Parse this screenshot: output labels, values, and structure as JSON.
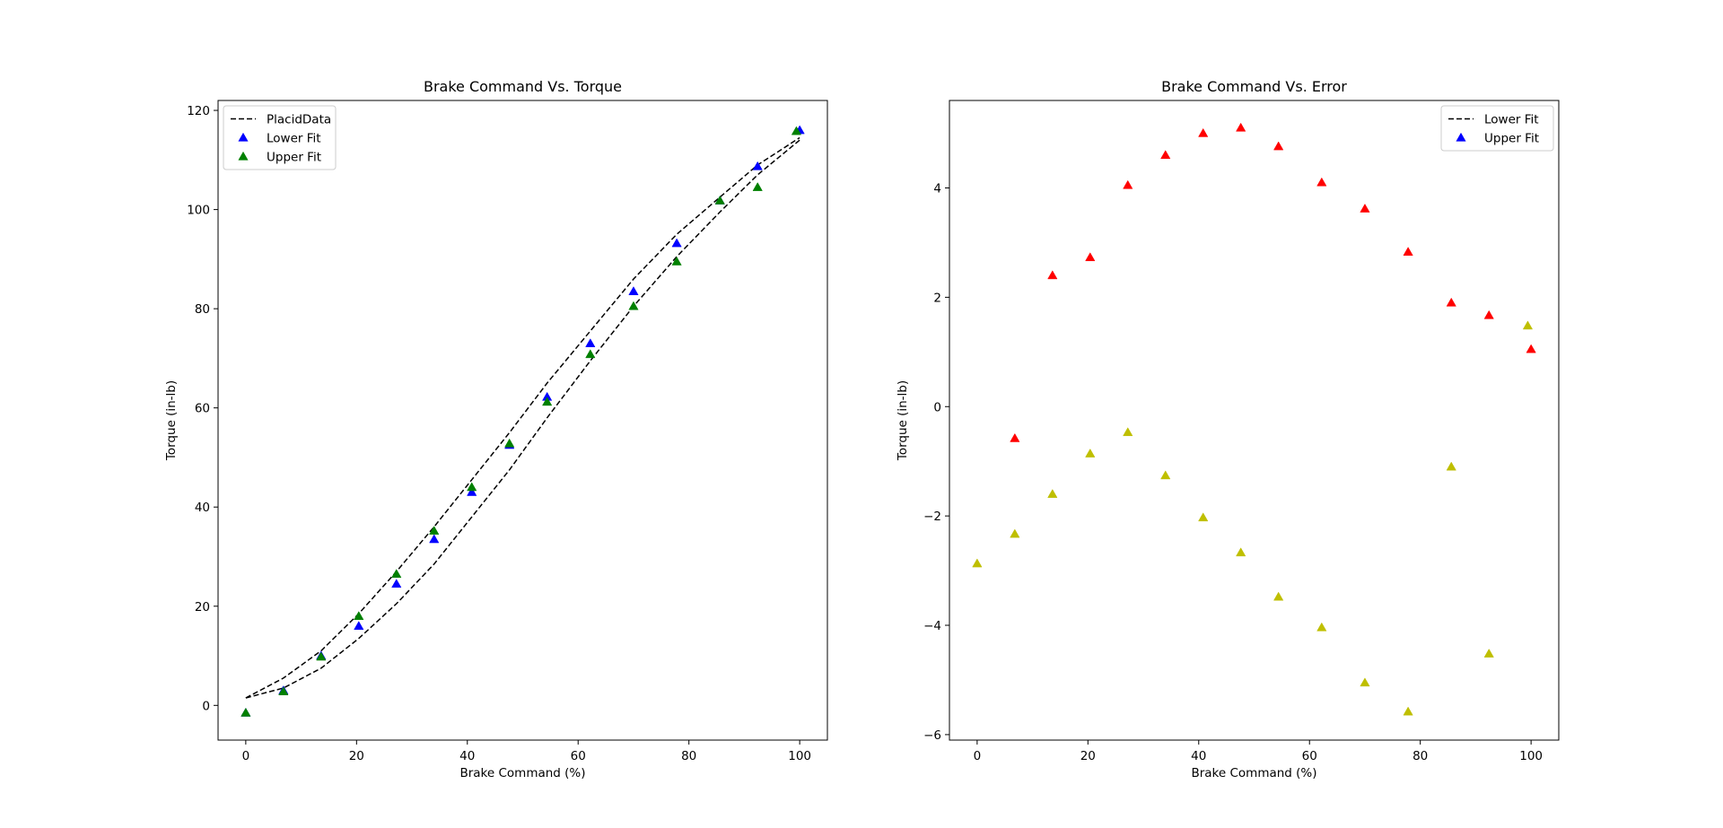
{
  "chart_data": [
    {
      "type": "scatter",
      "title": "Brake Command Vs. Torque",
      "xlabel": "Brake Command (%)",
      "ylabel": "Torque (in-lb)",
      "xlim": [
        -5,
        105
      ],
      "ylim": [
        -7,
        122
      ],
      "xticks": [
        0,
        20,
        40,
        60,
        80,
        100
      ],
      "yticks": [
        0,
        20,
        40,
        60,
        80,
        100,
        120
      ],
      "legend_position": "upper-left",
      "legend": [
        {
          "label": "PlacidData",
          "style": "dashed-line",
          "color": "#000000"
        },
        {
          "label": "Lower Fit",
          "style": "triangle",
          "color": "#0000ff"
        },
        {
          "label": "Upper Fit",
          "style": "triangle",
          "color": "#008000"
        }
      ],
      "lines": [
        {
          "color": "#000000",
          "dash": true,
          "x": [
            0,
            6.8,
            13.6,
            20.4,
            27.2,
            34.0,
            40.8,
            47.6,
            54.4,
            62.2,
            70.0,
            77.8,
            85.6,
            92.4,
            100
          ],
          "y": [
            1.5,
            5.5,
            11,
            18.5,
            27,
            36,
            45.5,
            55,
            65,
            75.5,
            86,
            95,
            102.5,
            109,
            114.5
          ]
        },
        {
          "color": "#000000",
          "dash": true,
          "x": [
            0,
            6.8,
            13.6,
            20.4,
            27.2,
            34.0,
            40.8,
            47.6,
            54.4,
            62.2,
            70.0,
            77.8,
            85.6,
            92.4,
            100
          ],
          "y": [
            1.5,
            3.5,
            7.5,
            13.5,
            20.5,
            28.5,
            38,
            47.5,
            58,
            69.5,
            80.5,
            90.5,
            99.5,
            107,
            114
          ]
        }
      ],
      "series": [
        {
          "color": "#0000ff",
          "x": [
            0,
            6.8,
            13.6,
            20.4,
            27.2,
            34.0,
            40.8,
            47.6,
            54.4,
            62.2,
            70.0,
            77.8,
            85.6,
            92.4,
            100
          ],
          "y": [
            -1.5,
            3.0,
            10.0,
            16.0,
            24.5,
            33.5,
            43.0,
            52.5,
            62.2,
            73.0,
            83.5,
            93.2,
            101.8,
            108.7,
            116
          ]
        },
        {
          "color": "#008000",
          "x": [
            0,
            6.8,
            13.6,
            20.4,
            27.2,
            34.0,
            40.8,
            47.6,
            54.4,
            62.2,
            70.0,
            77.8,
            85.6,
            92.4,
            99.4
          ],
          "y": [
            -1.5,
            2.8,
            9.8,
            18.0,
            26.5,
            35.2,
            44.0,
            52.8,
            61.2,
            70.8,
            80.5,
            89.5,
            101.8,
            104.5,
            115.8
          ]
        }
      ]
    },
    {
      "type": "scatter",
      "title": "Brake Command Vs. Error",
      "xlabel": "Brake Command (%)",
      "ylabel": "Torque (in-lb)",
      "xlim": [
        -5,
        105
      ],
      "ylim": [
        -6.1,
        5.6
      ],
      "xticks": [
        0,
        20,
        40,
        60,
        80,
        100
      ],
      "yticks": [
        -6,
        -4,
        -2,
        0,
        2,
        4
      ],
      "legend_position": "upper-right",
      "legend": [
        {
          "label": "Lower Fit",
          "style": "dashed-line",
          "color": "#000000"
        },
        {
          "label": "Upper Fit",
          "style": "triangle",
          "color": "#0000ff"
        }
      ],
      "lines": [],
      "series": [
        {
          "color": "#ff0000",
          "x": [
            6.8,
            13.6,
            20.4,
            27.2,
            34.0,
            40.8,
            47.6,
            54.4,
            62.2,
            70.0,
            77.8,
            85.6,
            92.4,
            100
          ],
          "y": [
            -0.58,
            2.4,
            2.73,
            4.05,
            4.6,
            5.0,
            5.1,
            4.76,
            4.1,
            3.62,
            2.83,
            1.9,
            1.67,
            1.05
          ]
        },
        {
          "color": "#bfbf00",
          "x": [
            0,
            6.8,
            13.6,
            20.4,
            27.2,
            34.0,
            40.8,
            47.6,
            54.4,
            62.2,
            70.0,
            77.8,
            85.6,
            92.4,
            99.4
          ],
          "y": [
            -2.87,
            -2.33,
            -1.6,
            -0.86,
            -0.47,
            -1.26,
            -2.03,
            -2.67,
            -3.48,
            -4.04,
            -5.05,
            -5.58,
            -1.1,
            -4.52,
            1.48
          ]
        }
      ]
    }
  ]
}
